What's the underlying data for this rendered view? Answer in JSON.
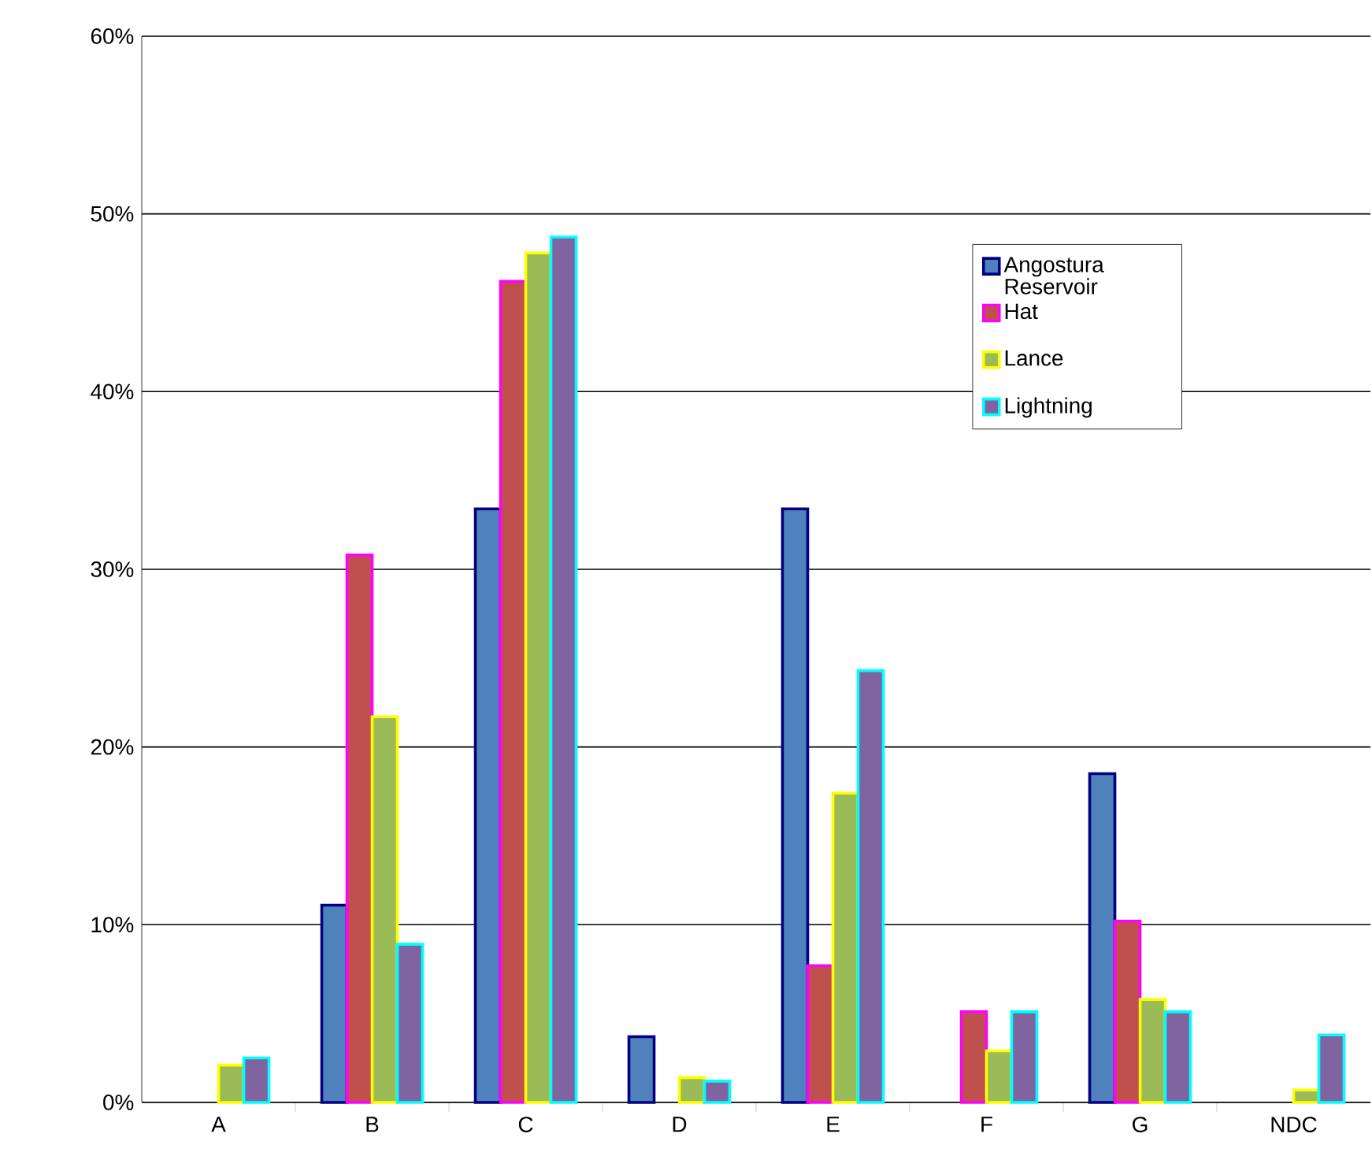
{
  "chart_data": {
    "type": "bar",
    "categories": [
      "A",
      "B",
      "C",
      "D",
      "E",
      "F",
      "G",
      "NDC"
    ],
    "series": [
      {
        "name": "Angostura Reservoir",
        "color": "#4f81bd",
        "values": [
          null,
          11.1,
          33.4,
          3.7,
          33.4,
          null,
          18.5,
          null
        ]
      },
      {
        "name": "Hat",
        "color": "#c0504d",
        "values": [
          null,
          30.8,
          46.2,
          null,
          7.7,
          5.1,
          10.2,
          null
        ]
      },
      {
        "name": "Lance",
        "color": "#9bbb59",
        "values": [
          2.1,
          21.7,
          47.8,
          1.4,
          17.4,
          2.9,
          5.8,
          0.7
        ]
      },
      {
        "name": "Lightning",
        "color": "#8064a2",
        "values": [
          2.5,
          8.9,
          48.7,
          1.2,
          24.3,
          5.1,
          5.1,
          3.8
        ]
      }
    ],
    "ylim": [
      0,
      60
    ],
    "yticks": [
      {
        "value": 0,
        "label": "0%"
      },
      {
        "value": 10,
        "label": "10%"
      },
      {
        "value": 20,
        "label": "20%"
      },
      {
        "value": 30,
        "label": "30%"
      },
      {
        "value": 40,
        "label": "40%"
      },
      {
        "value": 50,
        "label": "50%"
      },
      {
        "value": 60,
        "label": "60%"
      }
    ],
    "grid": "y",
    "legend": "top right"
  }
}
